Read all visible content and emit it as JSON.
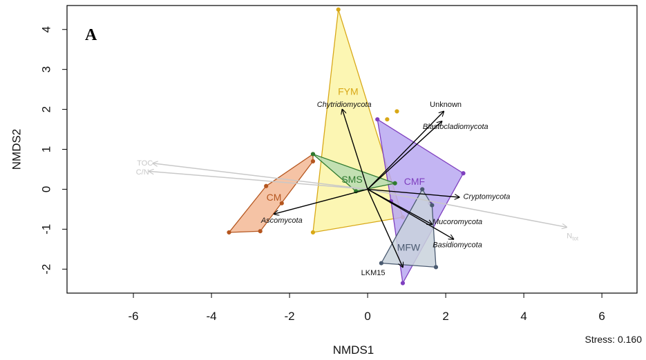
{
  "chart_data": {
    "type": "scatter",
    "panel_label": "A",
    "xlabel": "NMDS1",
    "ylabel": "NMDS2",
    "xlim": [
      -7.7,
      6.9
    ],
    "ylim": [
      -2.6,
      4.6
    ],
    "x_ticks": [
      -6,
      -4,
      -2,
      0,
      2,
      4,
      6
    ],
    "y_ticks": [
      -2,
      -1,
      0,
      1,
      2,
      3,
      4
    ],
    "stress_text": "Stress: 0.160",
    "groups": [
      {
        "name": "CM",
        "color": "#b5561f",
        "fill": "#f3b995",
        "points": [
          [
            -3.55,
            -1.08
          ],
          [
            -2.75,
            -1.05
          ],
          [
            -2.6,
            0.08
          ],
          [
            -1.4,
            0.88
          ],
          [
            -1.4,
            0.7
          ],
          [
            -2.2,
            -0.35
          ]
        ],
        "hull": [
          [
            -3.55,
            -1.08
          ],
          [
            -2.75,
            -1.05
          ],
          [
            -1.4,
            0.7
          ],
          [
            -1.4,
            0.88
          ],
          [
            -2.6,
            0.08
          ]
        ],
        "label_pos": [
          -2.4,
          -0.2
        ]
      },
      {
        "name": "FYM",
        "color": "#d8a817",
        "fill": "#fbf4a6",
        "points": [
          [
            -0.75,
            4.5
          ],
          [
            0.9,
            -0.7
          ],
          [
            -1.4,
            -1.08
          ],
          [
            0.5,
            1.75
          ],
          [
            0.75,
            1.95
          ]
        ],
        "hull": [
          [
            -0.75,
            4.5
          ],
          [
            0.9,
            -0.7
          ],
          [
            -1.4,
            -1.08
          ]
        ],
        "label_pos": [
          -0.5,
          2.45
        ]
      },
      {
        "name": "CMF",
        "color": "#7f3fbf",
        "fill": "#b9a8f1",
        "points": [
          [
            0.25,
            1.75
          ],
          [
            2.45,
            0.4
          ],
          [
            0.9,
            -2.35
          ],
          [
            0.6,
            -0.3
          ],
          [
            1.6,
            -0.35
          ]
        ],
        "hull": [
          [
            0.25,
            1.75
          ],
          [
            2.45,
            0.4
          ],
          [
            0.9,
            -2.35
          ],
          [
            0.6,
            -0.3
          ]
        ],
        "label_pos": [
          1.2,
          0.2
        ]
      },
      {
        "name": "SMS",
        "color": "#2f7a2f",
        "fill": "#b7dcb1",
        "points": [
          [
            -1.4,
            0.88
          ],
          [
            0.7,
            0.15
          ],
          [
            -0.3,
            -0.05
          ]
        ],
        "hull": [
          [
            -1.4,
            0.88
          ],
          [
            0.7,
            0.15
          ],
          [
            -0.3,
            -0.05
          ]
        ],
        "label_pos": [
          -0.4,
          0.25
        ]
      },
      {
        "name": "MFW",
        "color": "#4a5a70",
        "fill": "#c9d2dc",
        "points": [
          [
            1.4,
            0.0
          ],
          [
            1.65,
            -0.4
          ],
          [
            1.75,
            -1.95
          ],
          [
            0.35,
            -1.85
          ]
        ],
        "hull": [
          [
            1.4,
            0.0
          ],
          [
            1.65,
            -0.4
          ],
          [
            1.75,
            -1.95
          ],
          [
            0.35,
            -1.85
          ]
        ],
        "label_pos": [
          1.05,
          -1.45
        ]
      }
    ],
    "fungal_vectors": [
      {
        "name": "Chytridiomycota",
        "end": [
          -0.65,
          2.0
        ],
        "label": [
          -0.6,
          2.13
        ],
        "anchor": "middle",
        "italic": true
      },
      {
        "name": "Unknown",
        "end": [
          1.95,
          1.95
        ],
        "label": [
          2.0,
          2.13
        ],
        "anchor": "middle",
        "italic": false
      },
      {
        "name": "Blastocladiomycota",
        "end": [
          1.9,
          1.7
        ],
        "label": [
          2.25,
          1.58
        ],
        "anchor": "middle",
        "italic": true
      },
      {
        "name": "Cryptomycota",
        "end": [
          2.35,
          -0.2
        ],
        "label": [
          2.45,
          -0.17
        ],
        "anchor": "start",
        "italic": true
      },
      {
        "name": "Mucoromycota",
        "end": [
          1.65,
          -0.88
        ],
        "label": [
          2.3,
          -0.8
        ],
        "anchor": "middle",
        "italic": true
      },
      {
        "name": "Basidiomycota",
        "end": [
          2.2,
          -1.25
        ],
        "label": [
          2.3,
          -1.38
        ],
        "anchor": "middle",
        "italic": true
      },
      {
        "name": "Ascomycota",
        "end": [
          -2.4,
          -0.62
        ],
        "label": [
          -2.2,
          -0.77
        ],
        "anchor": "middle",
        "italic": true
      },
      {
        "name": "LKM15",
        "end": [
          0.9,
          -1.95
        ],
        "label": [
          0.45,
          -2.08
        ],
        "anchor": "end",
        "italic": false
      }
    ],
    "env_vectors": [
      {
        "name": "TOC",
        "end": [
          -5.5,
          0.65
        ],
        "label": [
          -5.5,
          0.66
        ],
        "anchor": "end"
      },
      {
        "name": "C/N",
        "end": [
          -5.6,
          0.45
        ],
        "label": [
          -5.6,
          0.44
        ],
        "anchor": "end"
      },
      {
        "name": "N",
        "subscript": "tot",
        "end": [
          5.1,
          -0.95
        ],
        "label": [
          5.1,
          -1.16
        ],
        "anchor": "start"
      }
    ],
    "origin": [
      0.0,
      0.0
    ],
    "vector_color": "#000000",
    "env_color": "#c8c8c8"
  }
}
